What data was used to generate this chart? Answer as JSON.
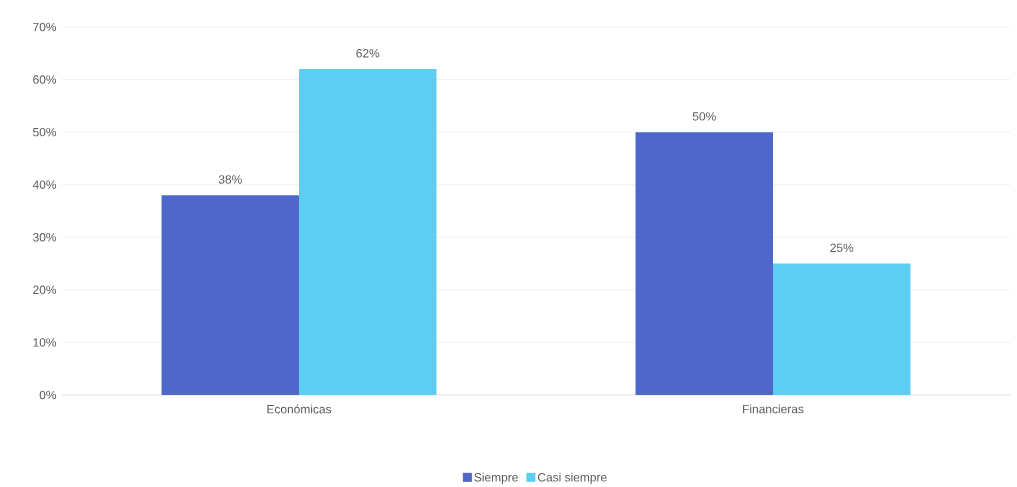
{
  "chart_data": {
    "type": "bar",
    "categories": [
      "Económicas",
      "Financieras"
    ],
    "series": [
      {
        "name": "Siempre",
        "color": "#4f67c8",
        "values": [
          38,
          50
        ],
        "value_labels": [
          "38%",
          "50%"
        ]
      },
      {
        "name": "Casi siempre",
        "color": "#5ecdf2",
        "values": [
          62,
          25
        ],
        "value_labels": [
          "62%",
          "25%"
        ]
      }
    ],
    "ylim": [
      0,
      70
    ],
    "yticks": [
      {
        "value": 0,
        "label": "0%"
      },
      {
        "value": 10,
        "label": "10%"
      },
      {
        "value": 20,
        "label": "20%"
      },
      {
        "value": 30,
        "label": "30%"
      },
      {
        "value": 40,
        "label": "40%"
      },
      {
        "value": 50,
        "label": "50%"
      },
      {
        "value": 60,
        "label": "60%"
      },
      {
        "value": 70,
        "label": "70%"
      }
    ],
    "grid": "y",
    "legend": "bottom"
  }
}
